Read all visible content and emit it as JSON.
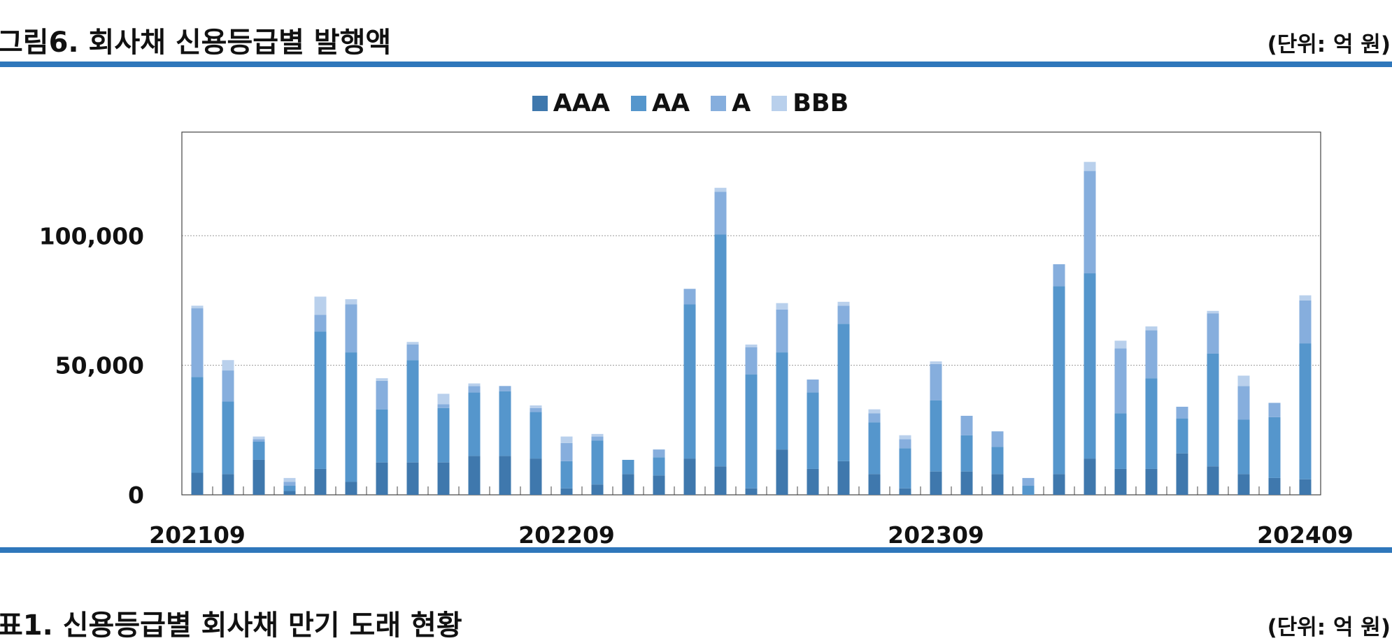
{
  "figure": {
    "title": "그림6. 회사채 신용등급별 발행액",
    "unit": "(단위: 억 원)"
  },
  "next_section": {
    "title": "표1. 신용등급별 회사채 만기 도래 현황",
    "unit": "(단위: 억 원)"
  },
  "colors": {
    "AAA": "#3f78ad",
    "AA": "#5596cc",
    "A": "#86aedd",
    "BBB": "#b9d0ec",
    "rule": "#2f77bb",
    "grid": "#9a9a9a",
    "axis": "#444444"
  },
  "chart_data": {
    "type": "bar",
    "stacked": true,
    "title": "",
    "xlabel": "",
    "ylabel": "",
    "ylim": [
      0,
      140000
    ],
    "yticks": [
      0,
      50000,
      100000
    ],
    "ytick_labels": [
      "0",
      "50,000",
      "100,000"
    ],
    "xtick_labels": [
      {
        "index": 0,
        "label": "202109"
      },
      {
        "index": 12,
        "label": "202209"
      },
      {
        "index": 24,
        "label": "202309"
      },
      {
        "index": 36,
        "label": "202409"
      }
    ],
    "grid": true,
    "legend_position": "top-center",
    "categories": [
      "202109",
      "202110",
      "202111",
      "202112",
      "202201",
      "202202",
      "202203",
      "202204",
      "202205",
      "202206",
      "202207",
      "202208",
      "202209",
      "202210",
      "202211",
      "202212",
      "202301",
      "202302",
      "202303",
      "202304",
      "202305",
      "202306",
      "202307",
      "202308",
      "202309",
      "202310",
      "202311",
      "202312",
      "202401",
      "202402",
      "202403",
      "202404",
      "202405",
      "202406",
      "202407",
      "202408",
      "202409"
    ],
    "series": [
      {
        "name": "AAA",
        "values": [
          8500,
          8000,
          13500,
          1500,
          10000,
          5000,
          12500,
          12500,
          12500,
          15000,
          15000,
          14000,
          2500,
          4000,
          8000,
          7500,
          14000,
          11000,
          2500,
          17500,
          10000,
          13000,
          8000,
          2500,
          9000,
          9000,
          8000,
          0,
          8000,
          14000,
          10000,
          10000,
          16000,
          11000,
          8000,
          6500,
          6000
        ]
      },
      {
        "name": "AA",
        "values": [
          37000,
          28000,
          7000,
          2000,
          53000,
          50000,
          20500,
          39500,
          21000,
          24500,
          25000,
          18000,
          10500,
          17000,
          5500,
          7000,
          59500,
          89500,
          44000,
          37500,
          29500,
          53000,
          20000,
          15500,
          27500,
          14000,
          10500,
          3500,
          72500,
          71500,
          21500,
          35000,
          13500,
          43500,
          21000,
          23500,
          52500
        ]
      },
      {
        "name": "A",
        "values": [
          26500,
          12000,
          1000,
          1500,
          6500,
          18500,
          11000,
          6000,
          1500,
          2500,
          2000,
          1500,
          7000,
          1500,
          0,
          3000,
          6000,
          16500,
          10500,
          16500,
          5000,
          7000,
          3500,
          3500,
          14000,
          7500,
          6000,
          3000,
          8500,
          39500,
          25000,
          18500,
          4500,
          15500,
          13000,
          5500,
          16500
        ]
      },
      {
        "name": "BBB",
        "values": [
          1000,
          4000,
          1000,
          1500,
          7000,
          2000,
          1000,
          1000,
          4000,
          1000,
          0,
          1000,
          2500,
          1000,
          0,
          0,
          0,
          1500,
          1000,
          2500,
          0,
          1500,
          1500,
          1500,
          1000,
          0,
          0,
          0,
          0,
          3500,
          3000,
          1500,
          0,
          1000,
          4000,
          0,
          2000
        ]
      }
    ]
  }
}
